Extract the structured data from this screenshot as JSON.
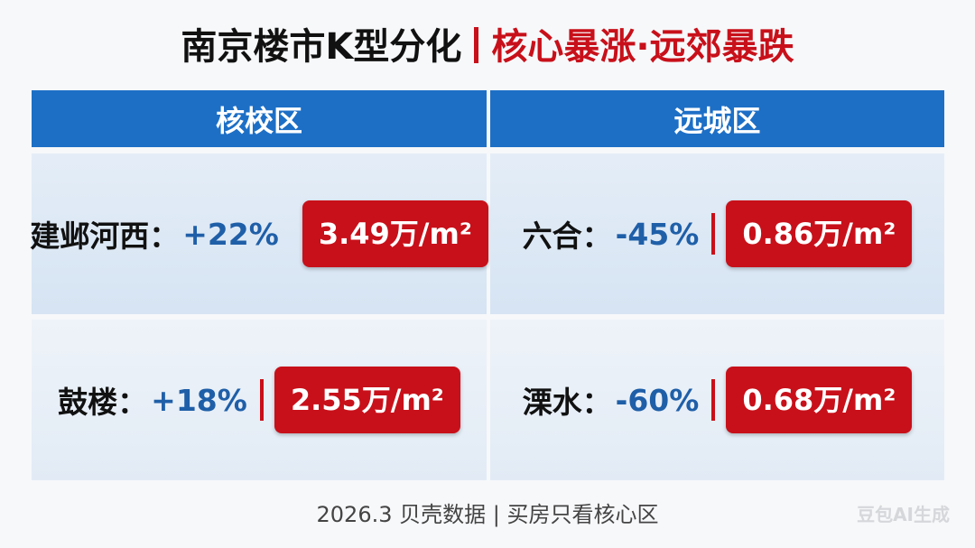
{
  "title": {
    "main": "南京楼市K型分化",
    "highlight": "核心暴涨·远郊暴跌"
  },
  "table": {
    "columns": [
      {
        "header": "核校区",
        "rows": [
          {
            "name": "建邺河西：",
            "change": "+22%",
            "price": "3.49万/m²"
          },
          {
            "name": "鼓楼：",
            "change": "+18%",
            "price": "2.55万/m²"
          }
        ]
      },
      {
        "header": "远城区",
        "rows": [
          {
            "name": "六合：",
            "change": "-45%",
            "price": "0.86万/m²"
          },
          {
            "name": "溧水：",
            "change": "-60%",
            "price": "0.68万/m²"
          }
        ]
      }
    ]
  },
  "footer": "2026.3 贝壳数据 | 买房只看核心区",
  "watermark": "豆包AI生成"
}
